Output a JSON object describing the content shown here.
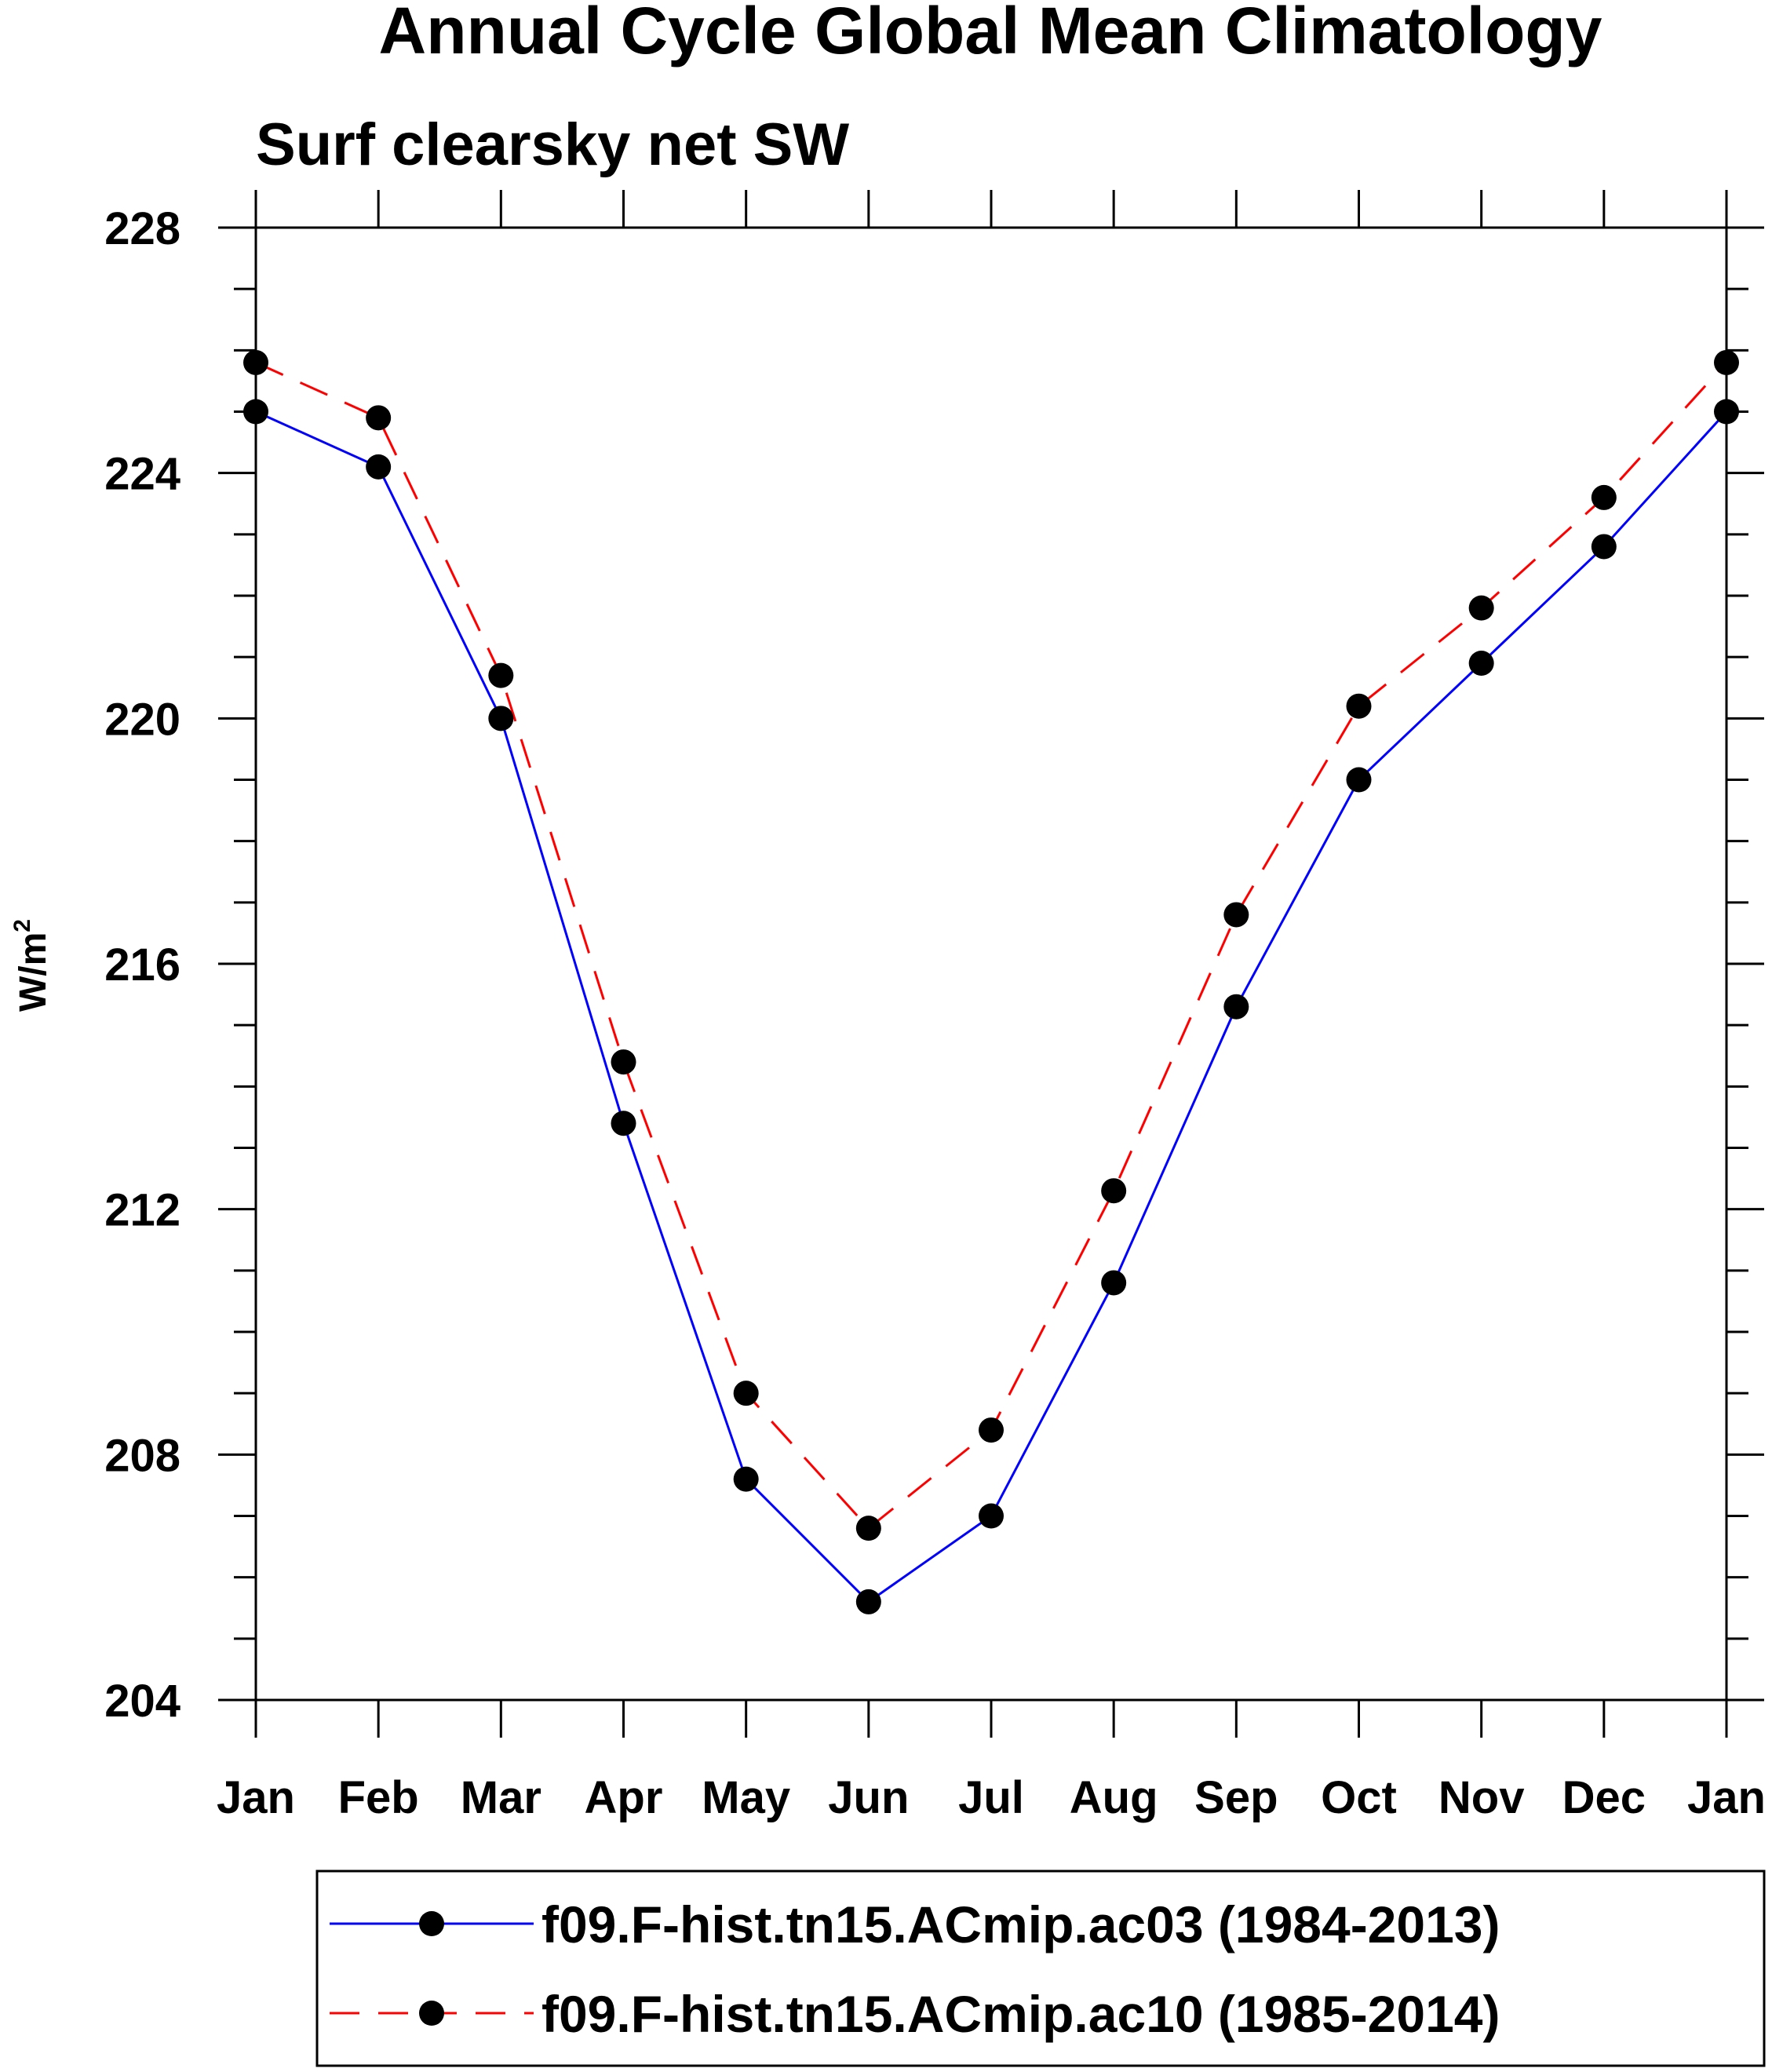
{
  "chart_data": {
    "type": "line",
    "title": "Annual Cycle Global Mean Climatology",
    "subtitle": "Surf clearsky net SW",
    "ylabel_base": "W/m",
    "ylabel_sup": "2",
    "xlabel": "",
    "categories": [
      "Jan",
      "Feb",
      "Mar",
      "Apr",
      "May",
      "Jun",
      "Jul",
      "Aug",
      "Sep",
      "Oct",
      "Nov",
      "Dec",
      "Jan"
    ],
    "ylim": [
      204,
      228
    ],
    "yticks": [
      204,
      208,
      212,
      216,
      220,
      224,
      228
    ],
    "yticks_minor_step": 1,
    "series": [
      {
        "name": "f09.F-hist.tn15.ACmip.ac03 (1984-2013)",
        "color": "#0000ff",
        "dash": "solid",
        "values": [
          225.0,
          224.1,
          220.0,
          213.4,
          207.6,
          205.6,
          207.0,
          210.8,
          215.3,
          219.0,
          220.9,
          222.8,
          225.0
        ]
      },
      {
        "name": "f09.F-hist.tn15.ACmip.ac10 (1985-2014)",
        "color": "#ff0000",
        "dash": "dashed",
        "values": [
          225.8,
          224.9,
          220.7,
          214.4,
          209.0,
          206.8,
          208.4,
          212.3,
          216.8,
          220.2,
          221.8,
          223.6,
          225.8
        ]
      }
    ],
    "marker_color": "#000000",
    "legend_position": "bottom"
  }
}
